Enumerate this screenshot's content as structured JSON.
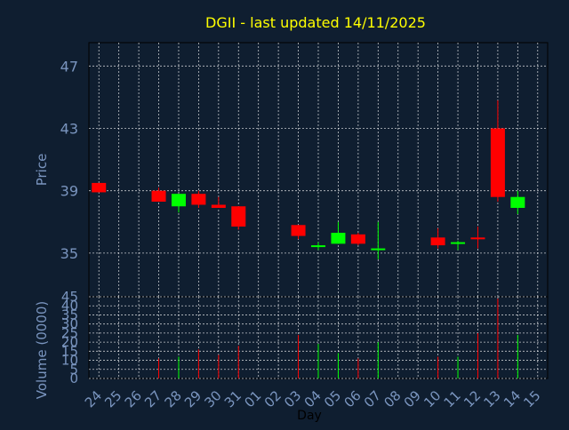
{
  "title": "DGII - last updated 14/11/2025",
  "colors": {
    "background": "#0f1e30",
    "frame": "#000000",
    "grid": "#ffffff",
    "title": "#ffff00",
    "axis_text": "#7a95bf",
    "up": "#00ff00",
    "down": "#ff0000"
  },
  "chart_data": [
    {
      "type": "candlestick",
      "title": "DGII - last updated 14/11/2025",
      "ylabel": "Price",
      "xlabel": "",
      "ylim": [
        32.2,
        48.5
      ],
      "yticks": [
        35,
        39,
        43,
        47
      ],
      "grid": true,
      "categories": [
        "24",
        "25",
        "26",
        "27",
        "28",
        "29",
        "30",
        "31",
        "01",
        "02",
        "03",
        "04",
        "05",
        "06",
        "07",
        "08",
        "09",
        "10",
        "11",
        "12",
        "13",
        "14",
        "15"
      ],
      "candles": [
        {
          "day": "24",
          "open": 39.5,
          "high": 39.5,
          "low": 38.9,
          "close": 38.9
        },
        {
          "day": "27",
          "open": 39.0,
          "high": 39.2,
          "low": 38.3,
          "close": 38.3
        },
        {
          "day": "28",
          "open": 38.0,
          "high": 38.8,
          "low": 37.6,
          "close": 38.8
        },
        {
          "day": "29",
          "open": 38.8,
          "high": 39.0,
          "low": 37.9,
          "close": 38.1
        },
        {
          "day": "30",
          "open": 38.1,
          "high": 38.6,
          "low": 37.9,
          "close": 37.9
        },
        {
          "day": "31",
          "open": 38.0,
          "high": 38.0,
          "low": 36.5,
          "close": 36.7
        },
        {
          "day": "03",
          "open": 36.8,
          "high": 36.8,
          "low": 35.9,
          "close": 36.1
        },
        {
          "day": "04",
          "open": 35.5,
          "high": 35.7,
          "low": 35.2,
          "close": 35.5
        },
        {
          "day": "05",
          "open": 35.6,
          "high": 37.0,
          "low": 35.6,
          "close": 36.3
        },
        {
          "day": "06",
          "open": 36.2,
          "high": 36.3,
          "low": 35.5,
          "close": 35.6
        },
        {
          "day": "07",
          "open": 35.3,
          "high": 37.0,
          "low": 34.6,
          "close": 35.3
        },
        {
          "day": "10",
          "open": 36.0,
          "high": 36.6,
          "low": 35.3,
          "close": 35.5
        },
        {
          "day": "11",
          "open": 35.6,
          "high": 35.8,
          "low": 35.2,
          "close": 35.7
        },
        {
          "day": "12",
          "open": 36.0,
          "high": 36.7,
          "low": 35.3,
          "close": 35.9
        },
        {
          "day": "13",
          "open": 43.0,
          "high": 44.8,
          "low": 38.3,
          "close": 38.6
        },
        {
          "day": "14",
          "open": 37.9,
          "high": 39.0,
          "low": 37.5,
          "close": 38.6
        }
      ]
    },
    {
      "type": "bar",
      "ylabel": "Volume (0000)",
      "xlabel": "Day",
      "ylim": [
        0,
        45
      ],
      "yticks": [
        0,
        5,
        10,
        15,
        20,
        25,
        30,
        35,
        40,
        45
      ],
      "grid": true,
      "categories": [
        "24",
        "25",
        "26",
        "27",
        "28",
        "29",
        "30",
        "31",
        "01",
        "02",
        "03",
        "04",
        "05",
        "06",
        "07",
        "08",
        "09",
        "10",
        "11",
        "12",
        "13",
        "14",
        "15"
      ],
      "bars": [
        {
          "day": "27",
          "value": 11,
          "direction": "down"
        },
        {
          "day": "28",
          "value": 12,
          "direction": "up"
        },
        {
          "day": "29",
          "value": 16,
          "direction": "down"
        },
        {
          "day": "30",
          "value": 13,
          "direction": "down"
        },
        {
          "day": "31",
          "value": 18,
          "direction": "down"
        },
        {
          "day": "03",
          "value": 24,
          "direction": "down"
        },
        {
          "day": "04",
          "value": 19,
          "direction": "up"
        },
        {
          "day": "05",
          "value": 14,
          "direction": "up"
        },
        {
          "day": "06",
          "value": 11,
          "direction": "down"
        },
        {
          "day": "07",
          "value": 20,
          "direction": "up"
        },
        {
          "day": "10",
          "value": 12,
          "direction": "down"
        },
        {
          "day": "11",
          "value": 12,
          "direction": "up"
        },
        {
          "day": "12",
          "value": 25,
          "direction": "down"
        },
        {
          "day": "13",
          "value": 44,
          "direction": "down"
        },
        {
          "day": "14",
          "value": 24,
          "direction": "up"
        }
      ]
    }
  ]
}
